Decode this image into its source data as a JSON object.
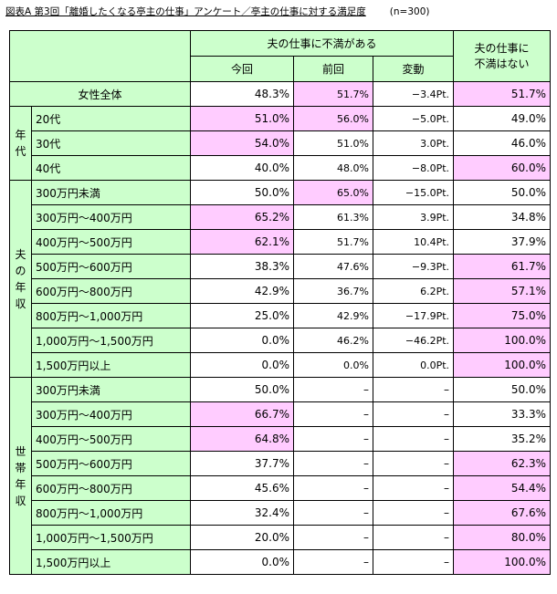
{
  "caption": {
    "title": "図表A 第3回「離婚したくなる亭主の仕事」アンケート／亭主の仕事に対する満足度",
    "n": "(n=300)"
  },
  "header": {
    "group1": "夫の仕事に不満がある",
    "col_now": "今回",
    "col_prev": "前回",
    "col_change": "変動",
    "group2_line1": "夫の仕事に",
    "group2_line2": "不満はない"
  },
  "total": {
    "label": "女性全体",
    "now": "48.3%",
    "prev": "51.7%",
    "change": "−3.4Pt.",
    "satisfied": "51.7%"
  },
  "age": {
    "group_label": [
      "年",
      "代"
    ],
    "rows": [
      {
        "label": "20代",
        "now": "51.0%",
        "prev": "56.0%",
        "change": "−5.0Pt.",
        "satisfied": "49.0%"
      },
      {
        "label": "30代",
        "now": "54.0%",
        "prev": "51.0%",
        "change": "3.0Pt.",
        "satisfied": "46.0%"
      },
      {
        "label": "40代",
        "now": "40.0%",
        "prev": "48.0%",
        "change": "−8.0Pt.",
        "satisfied": "60.0%"
      }
    ]
  },
  "husband_income": {
    "group_label": [
      "夫",
      "の",
      "年",
      "収"
    ],
    "rows": [
      {
        "label": "300万円未満",
        "now": "50.0%",
        "prev": "65.0%",
        "change": "−15.0Pt.",
        "satisfied": "50.0%"
      },
      {
        "label": "300万円～400万円",
        "now": "65.2%",
        "prev": "61.3%",
        "change": "3.9Pt.",
        "satisfied": "34.8%"
      },
      {
        "label": "400万円～500万円",
        "now": "62.1%",
        "prev": "51.7%",
        "change": "10.4Pt.",
        "satisfied": "37.9%"
      },
      {
        "label": "500万円～600万円",
        "now": "38.3%",
        "prev": "47.6%",
        "change": "−9.3Pt.",
        "satisfied": "61.7%"
      },
      {
        "label": "600万円～800万円",
        "now": "42.9%",
        "prev": "36.7%",
        "change": "6.2Pt.",
        "satisfied": "57.1%"
      },
      {
        "label": "800万円～1,000万円",
        "now": "25.0%",
        "prev": "42.9%",
        "change": "−17.9Pt.",
        "satisfied": "75.0%"
      },
      {
        "label": "1,000万円～1,500万円",
        "now": "0.0%",
        "prev": "46.2%",
        "change": "−46.2Pt.",
        "satisfied": "100.0%"
      },
      {
        "label": "1,500万円以上",
        "now": "0.0%",
        "prev": "0.0%",
        "change": "0.0Pt.",
        "satisfied": "100.0%"
      }
    ]
  },
  "household_income": {
    "group_label": [
      "世",
      "帯",
      "年",
      "収"
    ],
    "rows": [
      {
        "label": "300万円未満",
        "now": "50.0%",
        "prev": "–",
        "change": "–",
        "satisfied": "50.0%"
      },
      {
        "label": "300万円～400万円",
        "now": "66.7%",
        "prev": "–",
        "change": "–",
        "satisfied": "33.3%"
      },
      {
        "label": "400万円～500万円",
        "now": "64.8%",
        "prev": "–",
        "change": "–",
        "satisfied": "35.2%"
      },
      {
        "label": "500万円～600万円",
        "now": "37.7%",
        "prev": "–",
        "change": "–",
        "satisfied": "62.3%"
      },
      {
        "label": "600万円～800万円",
        "now": "45.6%",
        "prev": "–",
        "change": "–",
        "satisfied": "54.4%"
      },
      {
        "label": "800万円～1,000万円",
        "now": "32.4%",
        "prev": "–",
        "change": "–",
        "satisfied": "67.6%"
      },
      {
        "label": "1,000万円～1,500万円",
        "now": "20.0%",
        "prev": "–",
        "change": "–",
        "satisfied": "80.0%"
      },
      {
        "label": "1,500万円以上",
        "now": "0.0%",
        "prev": "–",
        "change": "–",
        "satisfied": "100.0%"
      }
    ]
  },
  "colors": {
    "header_bg": "#ccffcc",
    "highlight": "#ffccff",
    "border": "#000000"
  }
}
